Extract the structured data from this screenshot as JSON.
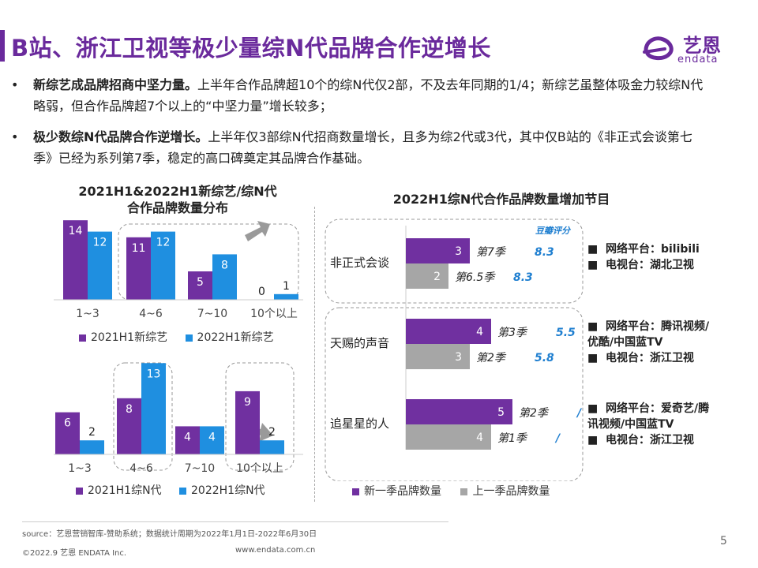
{
  "title": "B站、浙江卫视等极少量综N代品牌合作逆增长",
  "logo": {
    "cn": "艺恩",
    "en": "endata"
  },
  "bullets": [
    {
      "bold": "新综艺成品牌招商中坚力量。",
      "text": "上半年合作品牌超10个的综N代仅2部，不及去年同期的1/4；新综艺虽整体吸金力较综N代略弱，但合作品牌超7个以上的“中坚力量”增长较多；"
    },
    {
      "bold": "极少数综N代品牌合作逆增长。",
      "text": "上半年仅3部综N代招商数量增长，且多为综2代或3代，其中仅B站的《非正式会谈第七季》已经为系列第7季，稳定的高口碑奠定其品牌合作基础。"
    }
  ],
  "colors": {
    "purple": "#7030a0",
    "blue": "#1f8fe0",
    "gray": "#a6a6a6",
    "rating": "#1f7fd0"
  },
  "chart_data": [
    {
      "type": "bar",
      "title": "2021H1&2022H1新综艺/综N代合作品牌数量分布",
      "title_lines": [
        "2021H1&2022H1新综艺/综N代",
        "合作品牌数量分布"
      ],
      "categories": [
        "1~3",
        "4~6",
        "7~10",
        "10个以上"
      ],
      "series": [
        {
          "name": "2021H1新综艺",
          "values": [
            14,
            11,
            5,
            0
          ]
        },
        {
          "name": "2022H1新综艺",
          "values": [
            12,
            12,
            8,
            1
          ]
        }
      ],
      "ylim": [
        0,
        15
      ]
    },
    {
      "type": "bar",
      "categories": [
        "1~3",
        "4~6",
        "7~10",
        "10个以上"
      ],
      "series": [
        {
          "name": "2021H1综N代",
          "values": [
            6,
            8,
            4,
            9
          ]
        },
        {
          "name": "2022H1综N代",
          "values": [
            2,
            13,
            4,
            2
          ]
        }
      ],
      "ylim": [
        0,
        14
      ]
    },
    {
      "type": "bar",
      "orientation": "horizontal",
      "title": "2022H1综N代合作品牌数量增加节目",
      "categories": [
        "非正式会谈",
        "天赐的声音",
        "追星星的人"
      ],
      "series": [
        {
          "name": "新一季品牌数量",
          "values": [
            3,
            4,
            5
          ]
        },
        {
          "name": "上一季品牌数量",
          "values": [
            2,
            3,
            4
          ]
        }
      ],
      "season_labels": [
        [
          "第7季",
          "第6.5季"
        ],
        [
          "第3季",
          "第2季"
        ],
        [
          "第2季",
          "第1季"
        ]
      ],
      "ratings": [
        [
          "8.3",
          "8.3"
        ],
        [
          "5.5",
          "5.8"
        ],
        [
          "/",
          "/"
        ]
      ],
      "rating_header": "豆瓣评分",
      "xlim": [
        0,
        5.5
      ]
    }
  ],
  "platforms": [
    {
      "network": "网络平台：bilibili",
      "tv": "电视台：湖北卫视"
    },
    {
      "network_line1": "网络平台：腾讯视频/",
      "network_line2": "优酷/中国蓝TV",
      "tv": "电视台：浙江卫视"
    },
    {
      "network_line1": "网络平台：爱奇艺/腾",
      "network_line2": "讯视频/中国蓝TV",
      "tv": "电视台：浙江卫视"
    }
  ],
  "footer": {
    "source": "source：艺恩营销智库-赞助系统；数据统计周期为2022年1月1日-2022年6月30日",
    "copyright": "©2022.9 艺恩 ENDATA Inc.",
    "url": "www.endata.com.cn",
    "page": "5"
  }
}
